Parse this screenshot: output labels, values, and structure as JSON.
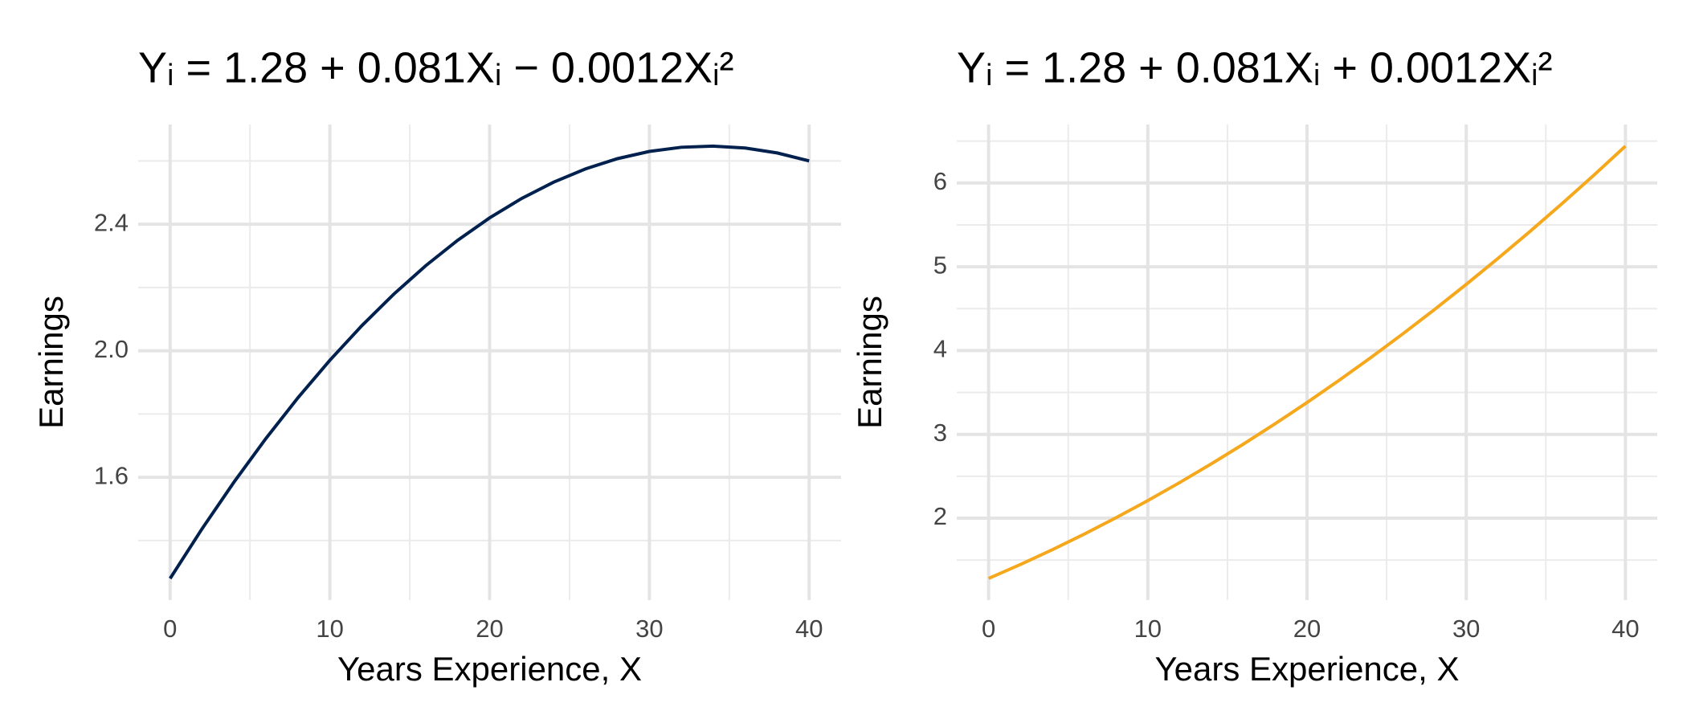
{
  "chart_data": [
    {
      "type": "line",
      "title": "Yᵢ = 1.28 + 0.081Xᵢ − 0.0012Xᵢ²",
      "x_label": "Years Experience, X",
      "y_label": "Earnings",
      "x": [
        0,
        2,
        4,
        6,
        8,
        10,
        12,
        14,
        16,
        18,
        20,
        22,
        24,
        26,
        28,
        30,
        32,
        34,
        36,
        38,
        40
      ],
      "series": [
        {
          "name": "Earnings",
          "color": "#00204e",
          "values": [
            1.28,
            1.4372,
            1.5848,
            1.7228,
            1.8512,
            1.97,
            2.0792,
            2.1788,
            2.2688,
            2.3492,
            2.42,
            2.4812,
            2.5328,
            2.5748,
            2.6072,
            2.63,
            2.6432,
            2.6468,
            2.6408,
            2.6252,
            2.6
          ]
        }
      ],
      "xlim": [
        -2,
        42
      ],
      "ylim": [
        1.2117,
        2.7151
      ],
      "xticks": [
        0,
        10,
        20,
        30,
        40
      ],
      "yticks": [
        {
          "value": 1.6,
          "label": "1.6"
        },
        {
          "value": 2,
          "label": "2.0"
        },
        {
          "value": 2.4,
          "label": "2.4"
        }
      ],
      "minor_xticks": [
        5,
        15,
        25,
        35
      ],
      "minor_yticks": [
        1.4,
        1.8,
        2.2,
        2.6
      ],
      "grid": true
    },
    {
      "type": "line",
      "title": "Yᵢ = 1.28 + 0.081Xᵢ + 0.0012Xᵢ²",
      "x_label": "Years Experience, X",
      "y_label": "Earnings",
      "x": [
        0,
        2,
        4,
        6,
        8,
        10,
        12,
        14,
        16,
        18,
        20,
        22,
        24,
        26,
        28,
        30,
        32,
        34,
        36,
        38,
        40
      ],
      "series": [
        {
          "name": "Earnings",
          "color": "#f5a81c",
          "values": [
            1.28,
            1.4468,
            1.6232,
            1.8092,
            2.0048,
            2.21,
            2.4248,
            2.6492,
            2.8832,
            3.1268,
            3.38,
            3.6428,
            3.9152,
            4.1972,
            4.4888,
            4.79,
            5.1008,
            5.4212,
            5.7512,
            6.0908,
            6.44
          ]
        }
      ],
      "xlim": [
        -2,
        42
      ],
      "ylim": [
        1.022,
        6.698
      ],
      "xticks": [
        0,
        10,
        20,
        30,
        40
      ],
      "yticks": [
        2,
        3,
        4,
        5,
        6
      ],
      "minor_xticks": [
        5,
        15,
        25,
        35
      ],
      "minor_yticks": [
        1.5,
        2.5,
        3.5,
        4.5,
        5.5,
        6.5
      ],
      "grid": true
    }
  ]
}
